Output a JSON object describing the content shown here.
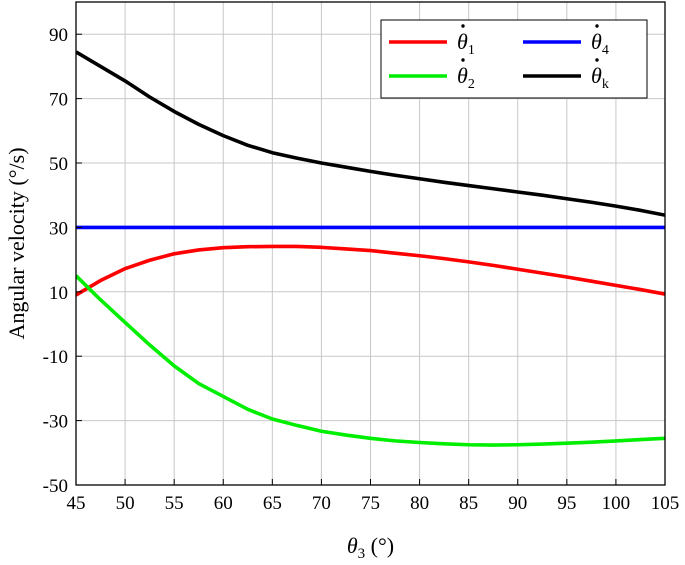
{
  "chart_data": {
    "type": "line",
    "title": "",
    "xlabel": {
      "symbol": "θ",
      "subscript": "3",
      "unit": " (°)"
    },
    "ylabel": "Angular velocity (°/s)",
    "xlim": [
      45,
      105
    ],
    "ylim": [
      -50,
      100
    ],
    "xticks": [
      45,
      50,
      55,
      60,
      65,
      70,
      75,
      80,
      85,
      90,
      95,
      100,
      105
    ],
    "yticks": [
      -50,
      -30,
      -10,
      10,
      30,
      50,
      70,
      90
    ],
    "grid": true,
    "legend_position": "top-right",
    "x": [
      45,
      47.5,
      50,
      52.5,
      55,
      57.5,
      60,
      62.5,
      65,
      67.5,
      70,
      72.5,
      75,
      77.5,
      80,
      82.5,
      85,
      87.5,
      90,
      92.5,
      95,
      97.5,
      100,
      102.5,
      105
    ],
    "series": [
      {
        "name": "θ̇1",
        "legend_symbol": "θ",
        "legend_subscript": "1",
        "color": "#ff0000",
        "values": [
          9,
          13.5,
          17.2,
          19.8,
          21.8,
          23.0,
          23.7,
          24.0,
          24.1,
          24.1,
          23.8,
          23.3,
          22.8,
          22.0,
          21.2,
          20.3,
          19.3,
          18.2,
          17.0,
          15.8,
          14.6,
          13.3,
          12.0,
          10.7,
          9.3
        ]
      },
      {
        "name": "θ̇2",
        "legend_symbol": "θ",
        "legend_subscript": "2",
        "color": "#00ee00",
        "values": [
          15,
          7.5,
          0.5,
          -6.5,
          -13,
          -18.5,
          -22.5,
          -26.5,
          -29.5,
          -31.5,
          -33.3,
          -34.5,
          -35.5,
          -36.3,
          -36.8,
          -37.2,
          -37.5,
          -37.6,
          -37.5,
          -37.3,
          -37.0,
          -36.7,
          -36.3,
          -35.9,
          -35.5
        ]
      },
      {
        "name": "θ̇4",
        "legend_symbol": "θ",
        "legend_subscript": "4",
        "color": "#0000ff",
        "values": [
          30,
          30,
          30,
          30,
          30,
          30,
          30,
          30,
          30,
          30,
          30,
          30,
          30,
          30,
          30,
          30,
          30,
          30,
          30,
          30,
          30,
          30,
          30,
          30,
          30
        ]
      },
      {
        "name": "θ̇k",
        "legend_symbol": "θ",
        "legend_subscript": "k",
        "color": "#000000",
        "values": [
          84.5,
          80.0,
          75.5,
          70.5,
          66.0,
          62.0,
          58.5,
          55.5,
          53.2,
          51.5,
          50.0,
          48.7,
          47.4,
          46.2,
          45.1,
          44.0,
          43.0,
          42.0,
          41.0,
          40.0,
          38.9,
          37.8,
          36.6,
          35.3,
          33.8
        ]
      }
    ]
  }
}
